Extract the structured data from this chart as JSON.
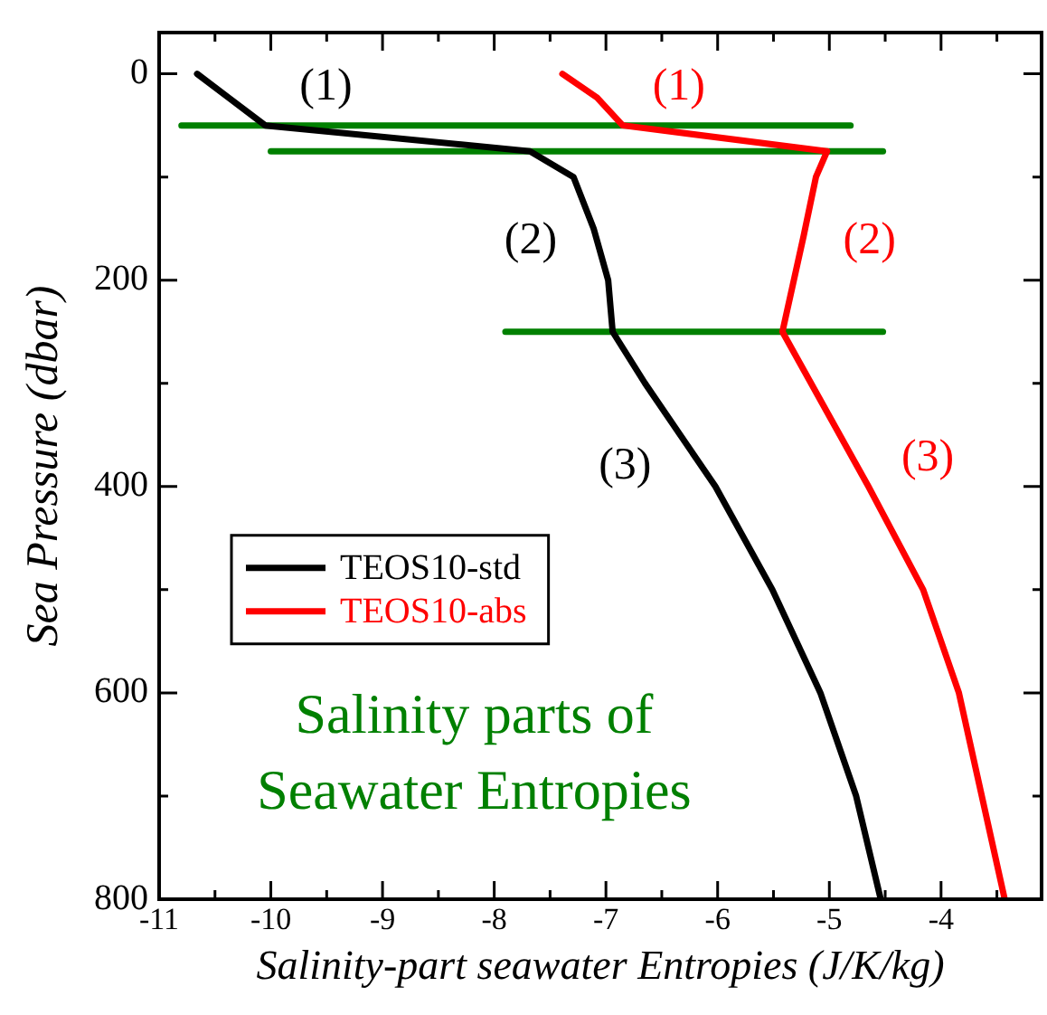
{
  "chart_data": {
    "type": "line",
    "xlabel": "Salinity-part seawater Entropies (J/K/kg)",
    "ylabel": "Sea Pressure (dbar)",
    "xlim": [
      -11,
      -3.1
    ],
    "ylim": [
      800,
      -40
    ],
    "xticks": [
      -11,
      {
        "value": -10.5,
        "label": null
      },
      -10,
      {
        "value": -9.5,
        "label": null
      },
      -9,
      {
        "value": -8.5,
        "label": null
      },
      -8,
      {
        "value": -7.5,
        "label": null
      },
      -7,
      {
        "value": -6.5,
        "label": null
      },
      -6,
      {
        "value": -5.5,
        "label": null
      },
      -5,
      {
        "value": -4.5,
        "label": null
      },
      -4,
      {
        "value": -3.5,
        "label": null
      }
    ],
    "yticks": [
      0,
      {
        "value": 100,
        "label": null
      },
      200,
      {
        "value": 300,
        "label": null
      },
      400,
      {
        "value": 500,
        "label": null
      },
      600,
      {
        "value": 700,
        "label": null
      },
      800
    ],
    "grid": false,
    "legend": "left",
    "marker": "none",
    "line_style": "solid",
    "series": [
      {
        "name": "TEOS10-std",
        "color": "#000000",
        "x": [
          -10.66,
          -10.05,
          -7.68,
          -7.29,
          -7.11,
          -6.98,
          -6.94,
          -6.65,
          -6.02,
          -5.51,
          -5.08,
          -4.76,
          -4.54
        ],
        "values": [
          0,
          50,
          75,
          100,
          150,
          200,
          250,
          300,
          400,
          500,
          600,
          700,
          800
        ]
      },
      {
        "name": "TEOS10-abs",
        "color": "#ff0000",
        "x": [
          -7.39,
          -7.08,
          -6.85,
          -5.02,
          -5.12,
          -5.23,
          -5.42,
          -4.65,
          -4.16,
          -3.84,
          -3.43
        ],
        "values": [
          0,
          23,
          50,
          75,
          100,
          157,
          250,
          400,
          500,
          600,
          800
        ]
      },
      {
        "color": "#008000",
        "x": [
          -10.8,
          -4.81
        ],
        "values": [
          50,
          50
        ]
      },
      {
        "color": "#008000",
        "x": [
          -10.0,
          -4.52
        ],
        "values": [
          75,
          75
        ]
      },
      {
        "color": "#008000",
        "x": [
          -7.9,
          -4.52
        ],
        "values": [
          250,
          250
        ]
      }
    ],
    "annotations": [
      "(1)",
      "(2)",
      "(3)",
      "(1)",
      "(2)",
      "(3)",
      "Salinity parts of\nSeawater Entropies"
    ]
  }
}
